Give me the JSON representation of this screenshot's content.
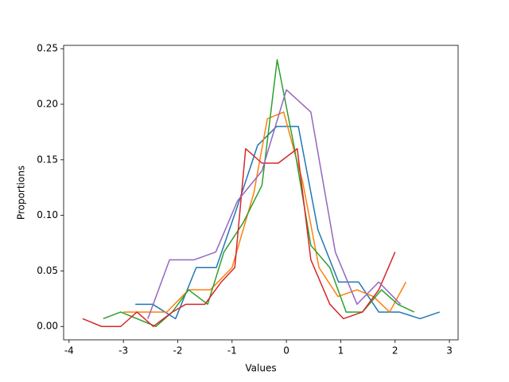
{
  "chart_data": {
    "type": "line",
    "xlabel": "Values",
    "ylabel": "Proportions",
    "xlim": [
      -4.1,
      3.16
    ],
    "ylim": [
      -0.012,
      0.253
    ],
    "xticks": [
      -4,
      -3,
      -2,
      -1,
      0,
      1,
      2,
      3
    ],
    "yticks": [
      {
        "value": 0,
        "label": "0.00"
      },
      {
        "value": 0.05,
        "label": "0.05"
      },
      {
        "value": 0.1,
        "label": "0.10"
      },
      {
        "value": 0.15,
        "label": "0.15"
      },
      {
        "value": 0.2,
        "label": "0.20"
      },
      {
        "value": 0.25,
        "label": "0.25"
      }
    ],
    "series": [
      {
        "color": "#1f77b4",
        "x": [
          -2.78,
          -2.46,
          -2.04,
          -1.66,
          -1.29,
          -0.93,
          -0.53,
          -0.18,
          0.22,
          0.58,
          0.96,
          1.33,
          1.7,
          2.08,
          2.46,
          2.82
        ],
        "values": [
          0.02,
          0.02,
          0.007,
          0.053,
          0.053,
          0.104,
          0.163,
          0.18,
          0.18,
          0.087,
          0.04,
          0.04,
          0.013,
          0.013,
          0.007,
          0.013
        ]
      },
      {
        "color": "#ff7f0e",
        "x": [
          -3.0,
          -2.6,
          -2.2,
          -1.8,
          -1.4,
          -1.0,
          -0.6,
          -0.35,
          -0.05,
          0.3,
          0.6,
          0.95,
          1.3,
          1.6,
          1.9,
          2.2
        ],
        "values": [
          0.013,
          0.013,
          0.013,
          0.033,
          0.033,
          0.053,
          0.12,
          0.187,
          0.193,
          0.13,
          0.053,
          0.027,
          0.033,
          0.027,
          0.013,
          0.04
        ]
      },
      {
        "color": "#2ca02c",
        "x": [
          -3.37,
          -3.05,
          -2.75,
          -2.4,
          -2.1,
          -1.8,
          -1.45,
          -1.15,
          -0.8,
          -0.45,
          -0.17,
          0.15,
          0.45,
          0.8,
          1.1,
          1.4,
          1.75,
          2.05,
          2.35
        ],
        "values": [
          0.007,
          0.013,
          0.007,
          0.0,
          0.013,
          0.033,
          0.02,
          0.067,
          0.093,
          0.127,
          0.24,
          0.16,
          0.073,
          0.053,
          0.013,
          0.013,
          0.033,
          0.02,
          0.013
        ]
      },
      {
        "color": "#d62728",
        "x": [
          -3.75,
          -3.4,
          -3.05,
          -2.75,
          -2.45,
          -2.1,
          -1.85,
          -1.5,
          -1.2,
          -0.95,
          -0.75,
          -0.45,
          -0.15,
          0.2,
          0.45,
          0.8,
          1.05,
          1.4,
          1.7,
          2.0
        ],
        "values": [
          0.007,
          0.0,
          0.0,
          0.013,
          0.0,
          0.013,
          0.02,
          0.02,
          0.04,
          0.053,
          0.16,
          0.147,
          0.147,
          0.16,
          0.06,
          0.02,
          0.007,
          0.013,
          0.033,
          0.067
        ]
      },
      {
        "color": "#9467bd",
        "x": [
          -2.55,
          -2.15,
          -1.7,
          -1.3,
          -0.9,
          -0.45,
          0.0,
          0.45,
          0.9,
          1.3,
          1.7,
          2.1
        ],
        "values": [
          0.007,
          0.06,
          0.06,
          0.067,
          0.113,
          0.14,
          0.213,
          0.193,
          0.067,
          0.02,
          0.04,
          0.02
        ]
      }
    ]
  }
}
